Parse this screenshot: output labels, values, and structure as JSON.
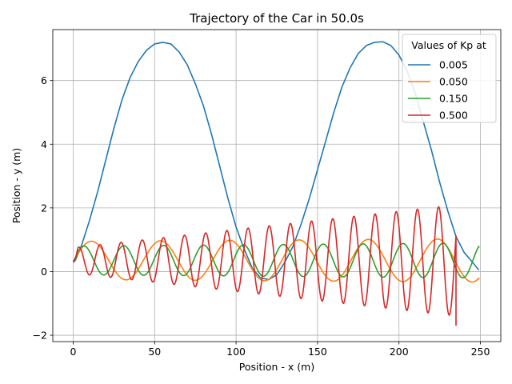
{
  "chart_data": {
    "type": "line",
    "title": "Trajectory of the Car in 50.0s",
    "xlabel": "Position - x (m)",
    "ylabel": "Position - y (m)",
    "xlim": [
      -12.5,
      262.5
    ],
    "ylim": [
      -2.2,
      7.6
    ],
    "xticks": [
      0,
      50,
      100,
      150,
      200,
      250
    ],
    "yticks": [
      -2,
      0,
      2,
      4,
      6
    ],
    "ytick_labels": [
      "−2",
      "0",
      "2",
      "4",
      "6"
    ],
    "grid": true,
    "legend": {
      "title": "Values of Kp at",
      "position": "top-right"
    },
    "series": [
      {
        "name": "0.005",
        "color": "#1f77b4",
        "points": [
          [
            0,
            0.3
          ],
          [
            5,
            0.8
          ],
          [
            10,
            1.6
          ],
          [
            15,
            2.5
          ],
          [
            20,
            3.5
          ],
          [
            25,
            4.5
          ],
          [
            30,
            5.4
          ],
          [
            35,
            6.1
          ],
          [
            40,
            6.6
          ],
          [
            45,
            6.95
          ],
          [
            50,
            7.15
          ],
          [
            55,
            7.2
          ],
          [
            60,
            7.15
          ],
          [
            65,
            6.9
          ],
          [
            70,
            6.5
          ],
          [
            75,
            5.9
          ],
          [
            80,
            5.2
          ],
          [
            85,
            4.3
          ],
          [
            90,
            3.3
          ],
          [
            95,
            2.3
          ],
          [
            100,
            1.4
          ],
          [
            105,
            0.7
          ],
          [
            110,
            0.1
          ],
          [
            115,
            -0.2
          ],
          [
            120,
            -0.25
          ],
          [
            125,
            -0.1
          ],
          [
            130,
            0.3
          ],
          [
            135,
            0.8
          ],
          [
            140,
            1.5
          ],
          [
            145,
            2.3
          ],
          [
            150,
            3.2
          ],
          [
            155,
            4.1
          ],
          [
            160,
            5.0
          ],
          [
            165,
            5.8
          ],
          [
            170,
            6.4
          ],
          [
            175,
            6.85
          ],
          [
            180,
            7.1
          ],
          [
            185,
            7.2
          ],
          [
            190,
            7.22
          ],
          [
            195,
            7.1
          ],
          [
            200,
            6.8
          ],
          [
            205,
            6.3
          ],
          [
            210,
            5.6
          ],
          [
            215,
            4.7
          ],
          [
            220,
            3.8
          ],
          [
            225,
            2.8
          ],
          [
            230,
            1.9
          ],
          [
            235,
            1.1
          ],
          [
            240,
            0.6
          ],
          [
            245,
            0.3
          ],
          [
            249,
            0.05
          ]
        ]
      },
      {
        "name": "0.050",
        "color": "#ff7f0e",
        "amplitude": 0.6,
        "period": 42.5,
        "points": [
          [
            0,
            0.3
          ],
          [
            249,
            -0.25
          ]
        ]
      },
      {
        "name": "0.150",
        "color": "#2ca02c",
        "amplitude": 0.45,
        "period": 24.5,
        "points": [
          [
            0,
            0.3
          ],
          [
            249,
            0.75
          ]
        ]
      },
      {
        "name": "0.500",
        "color": "#d62728",
        "amplitude": 0.4,
        "period": 13.0,
        "points": [
          [
            0,
            0.3
          ],
          [
            235,
            -1.7
          ]
        ]
      }
    ]
  }
}
